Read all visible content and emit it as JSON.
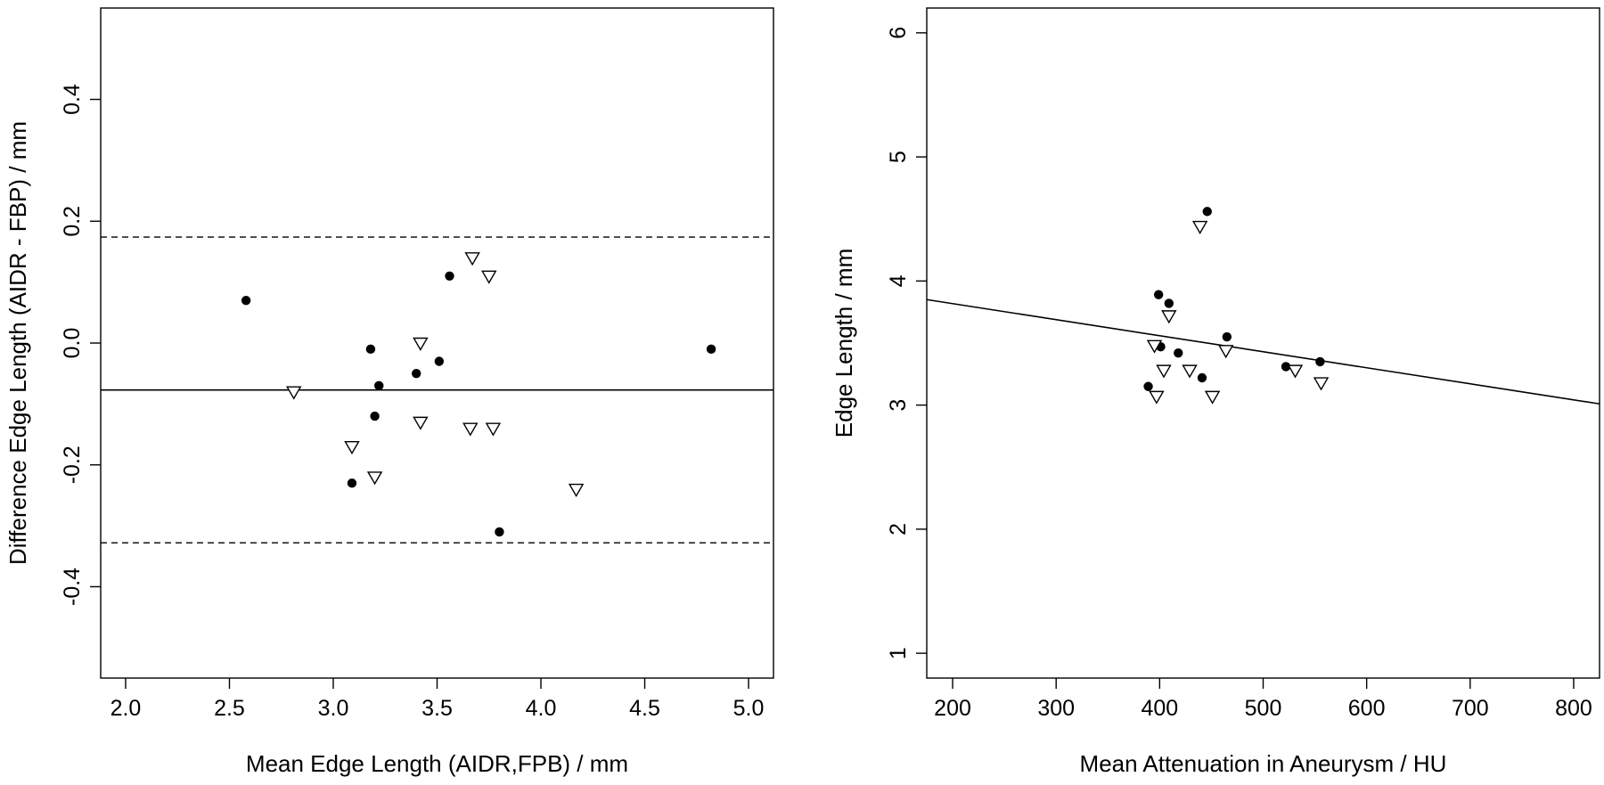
{
  "chart_data": [
    {
      "type": "scatter",
      "title": "",
      "xlabel": "Mean Edge Length (AIDR,FPB) / mm",
      "ylabel": "Difference Edge Length (AIDR - FBP) / mm",
      "xlim": [
        1.88,
        5.12
      ],
      "ylim": [
        -0.55,
        0.55
      ],
      "xticks": [
        2.0,
        2.5,
        3.0,
        3.5,
        4.0,
        4.5,
        5.0
      ],
      "xtick_labels": [
        "2.0",
        "2.5",
        "3.0",
        "3.5",
        "4.0",
        "4.5",
        "5.0"
      ],
      "yticks": [
        -0.4,
        -0.2,
        0.0,
        0.2,
        0.4
      ],
      "ytick_labels": [
        "-0.4",
        "-0.2",
        "0.0",
        "0.2",
        "0.4"
      ],
      "grid": false,
      "reference_lines": [
        {
          "style": "solid",
          "y": -0.077
        },
        {
          "style": "dashed",
          "y": 0.174
        },
        {
          "style": "dashed",
          "y": -0.328
        }
      ],
      "series": [
        {
          "marker": "filled-circle",
          "points": [
            {
              "x": 2.58,
              "y": 0.07
            },
            {
              "x": 3.18,
              "y": -0.01
            },
            {
              "x": 3.2,
              "y": -0.12
            },
            {
              "x": 3.22,
              "y": -0.07
            },
            {
              "x": 3.09,
              "y": -0.23
            },
            {
              "x": 3.4,
              "y": -0.05
            },
            {
              "x": 3.51,
              "y": -0.03
            },
            {
              "x": 3.56,
              "y": 0.11
            },
            {
              "x": 3.8,
              "y": -0.31
            },
            {
              "x": 4.82,
              "y": -0.01
            }
          ]
        },
        {
          "marker": "open-triangle-down",
          "points": [
            {
              "x": 2.81,
              "y": -0.08
            },
            {
              "x": 3.09,
              "y": -0.17
            },
            {
              "x": 3.2,
              "y": -0.22
            },
            {
              "x": 3.42,
              "y": 0.0
            },
            {
              "x": 3.42,
              "y": -0.13
            },
            {
              "x": 3.66,
              "y": -0.14
            },
            {
              "x": 3.67,
              "y": 0.14
            },
            {
              "x": 3.75,
              "y": 0.11
            },
            {
              "x": 3.77,
              "y": -0.14
            },
            {
              "x": 4.17,
              "y": -0.24
            }
          ]
        }
      ]
    },
    {
      "type": "scatter",
      "title": "",
      "xlabel": "Mean Attenuation in Aneurysm / HU",
      "ylabel": "Edge Length / mm",
      "xlim": [
        175,
        825
      ],
      "ylim": [
        0.8,
        6.2
      ],
      "xticks": [
        200,
        300,
        400,
        500,
        600,
        700,
        800
      ],
      "xtick_labels": [
        "200",
        "300",
        "400",
        "500",
        "600",
        "700",
        "800"
      ],
      "yticks": [
        1,
        2,
        3,
        4,
        5,
        6
      ],
      "ytick_labels": [
        "1",
        "2",
        "3",
        "4",
        "5",
        "6"
      ],
      "grid": false,
      "regression_line": {
        "x": [
          175,
          825
        ],
        "y": [
          3.85,
          3.01
        ]
      },
      "series": [
        {
          "marker": "filled-circle",
          "points": [
            {
              "x": 389,
              "y": 3.15
            },
            {
              "x": 399,
              "y": 3.89
            },
            {
              "x": 401,
              "y": 3.47
            },
            {
              "x": 409,
              "y": 3.82
            },
            {
              "x": 418,
              "y": 3.42
            },
            {
              "x": 441,
              "y": 3.22
            },
            {
              "x": 446,
              "y": 4.56
            },
            {
              "x": 465,
              "y": 3.55
            },
            {
              "x": 522,
              "y": 3.31
            },
            {
              "x": 555,
              "y": 3.35
            }
          ]
        },
        {
          "marker": "open-triangle-down",
          "points": [
            {
              "x": 395,
              "y": 3.48
            },
            {
              "x": 397,
              "y": 3.07
            },
            {
              "x": 404,
              "y": 3.28
            },
            {
              "x": 409,
              "y": 3.72
            },
            {
              "x": 429,
              "y": 3.28
            },
            {
              "x": 439,
              "y": 4.44
            },
            {
              "x": 451,
              "y": 3.07
            },
            {
              "x": 464,
              "y": 3.44
            },
            {
              "x": 531,
              "y": 3.28
            },
            {
              "x": 556,
              "y": 3.18
            }
          ]
        }
      ]
    }
  ]
}
